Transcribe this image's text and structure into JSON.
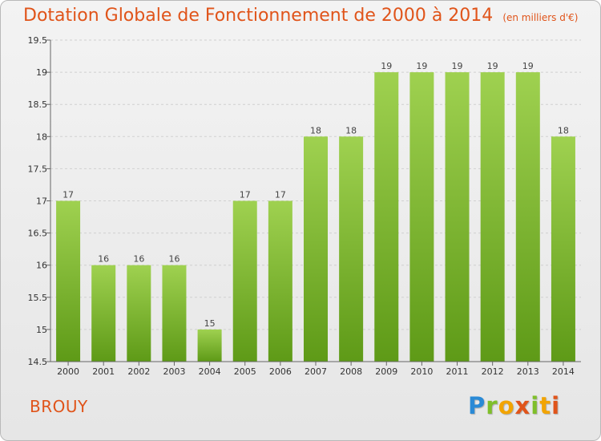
{
  "header": {
    "title": "Dotation Globale de Fonctionnement de 2000 à 2014",
    "subtitle": "(en milliers d'€)"
  },
  "footer": {
    "place": "BROUY",
    "logo_letters": [
      "P",
      "r",
      "o",
      "x",
      "i",
      "t",
      "i"
    ]
  },
  "colors": {
    "accent": "#e0541a",
    "bar_top": "#9fd150",
    "bar_bottom": "#5e9a17",
    "logo": [
      "#2a8ad6",
      "#7fbf2a",
      "#f2a400",
      "#e0541a"
    ]
  },
  "chart_data": {
    "type": "bar",
    "title": "Dotation Globale de Fonctionnement de 2000 à 2014",
    "subtitle": "(en milliers d'€)",
    "categories": [
      "2000",
      "2001",
      "2002",
      "2003",
      "2004",
      "2005",
      "2006",
      "2007",
      "2008",
      "2009",
      "2010",
      "2011",
      "2012",
      "2013",
      "2014"
    ],
    "values": [
      17,
      16,
      16,
      16,
      15,
      17,
      17,
      18,
      18,
      19,
      19,
      19,
      19,
      19,
      18
    ],
    "value_labels": [
      "17",
      "16",
      "16",
      "16",
      "15",
      "17",
      "17",
      "18",
      "18",
      "19",
      "19",
      "19",
      "19",
      "19",
      "18"
    ],
    "ylim": [
      14.5,
      19.5
    ],
    "yticks": [
      14.5,
      15,
      15.5,
      16,
      16.5,
      17,
      17.5,
      18,
      18.5,
      19,
      19.5
    ],
    "ytick_labels": [
      "14.5",
      "15",
      "15.5",
      "16",
      "16.5",
      "17",
      "17.5",
      "18",
      "18.5",
      "19",
      "19.5"
    ],
    "grid": true
  }
}
